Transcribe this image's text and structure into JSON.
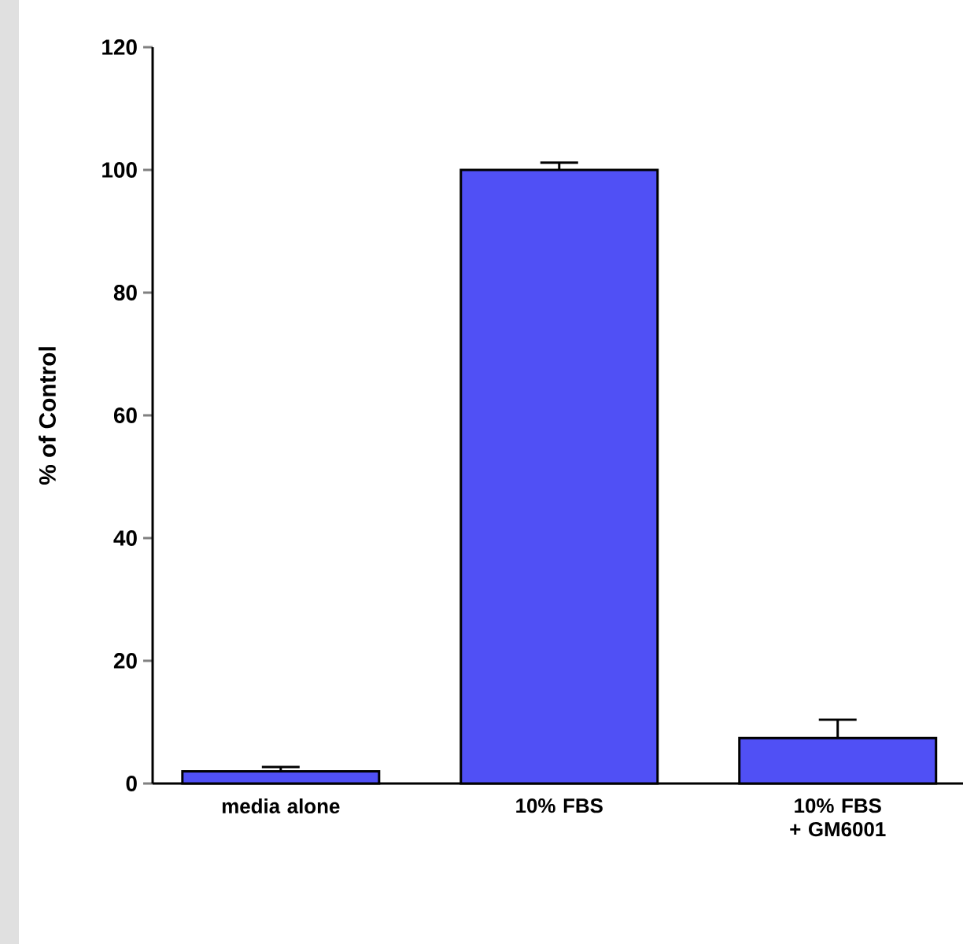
{
  "chart_data": {
    "type": "bar",
    "ylabel": "% of Control",
    "categories": [
      "media alone",
      "10% FBS",
      "10% FBS + GM6001"
    ],
    "values": [
      2,
      100,
      7.4
    ],
    "errors": [
      0.7,
      1.2,
      3
    ],
    "color": "#5050f5",
    "ylim": [
      0,
      120
    ],
    "yticks": [
      0,
      20,
      40,
      60,
      80,
      100,
      120
    ],
    "grid": false
  }
}
